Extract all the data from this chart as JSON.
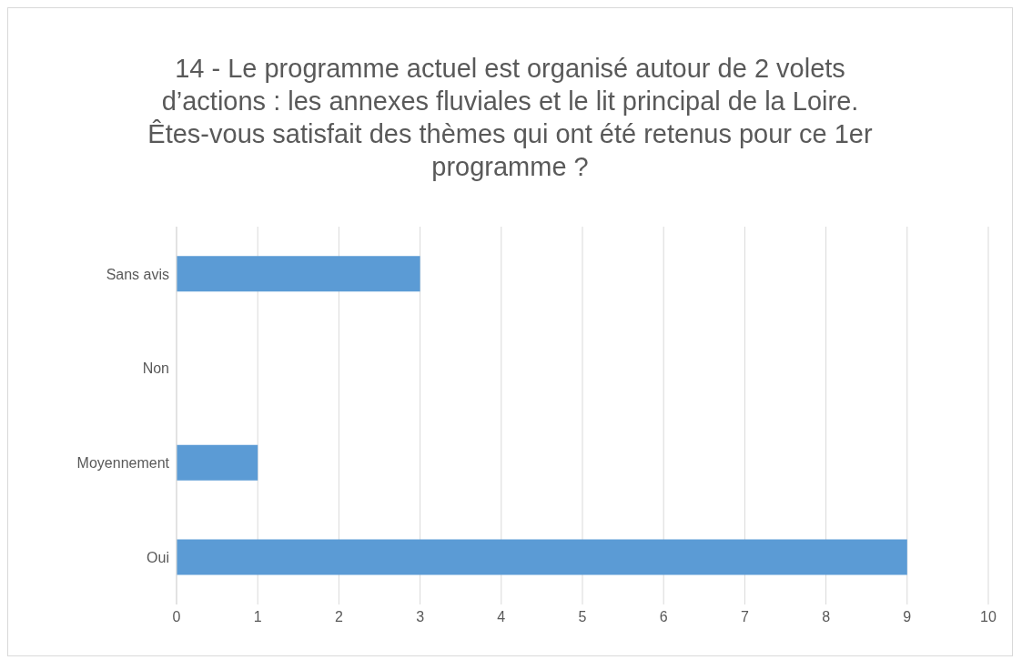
{
  "chart_data": {
    "type": "bar",
    "orientation": "horizontal",
    "title": "14 - Le programme actuel est organisé autour de 2 volets d’actions : les annexes fluviales et le lit principal de la Loire. Êtes-vous satisfait des thèmes qui ont été retenus pour ce 1er programme ?",
    "categories": [
      "Sans avis",
      "Non",
      "Moyennement",
      "Oui"
    ],
    "values": [
      3,
      0,
      1,
      9
    ],
    "color": "#5b9bd5",
    "xlim": [
      0,
      10
    ],
    "xticks": [
      0,
      1,
      2,
      3,
      4,
      5,
      6,
      7,
      8,
      9,
      10
    ],
    "grid": "x"
  }
}
